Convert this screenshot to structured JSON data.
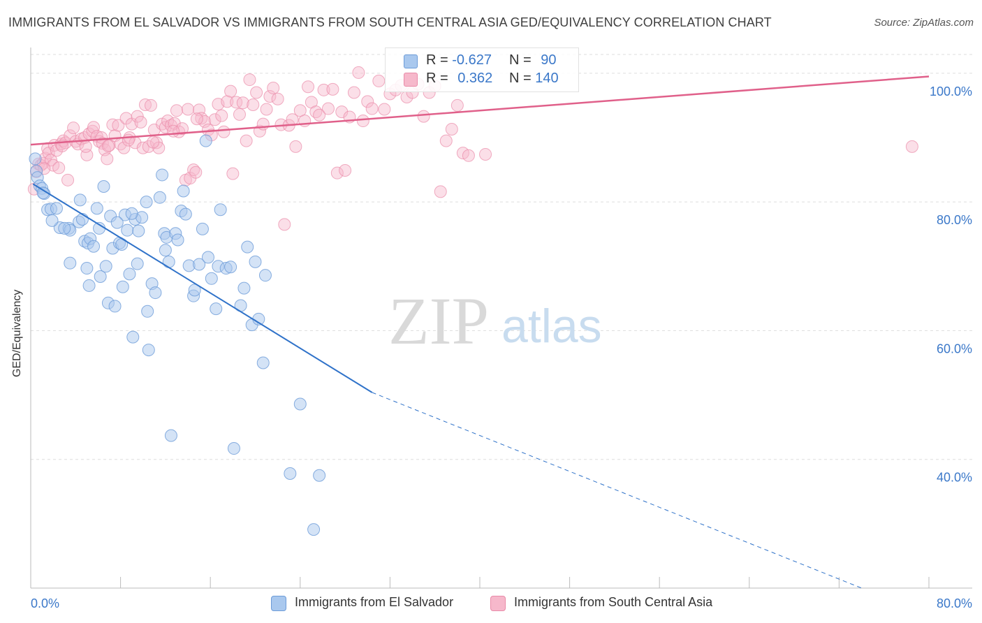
{
  "title": "IMMIGRANTS FROM EL SALVADOR VS IMMIGRANTS FROM SOUTH CENTRAL ASIA GED/EQUIVALENCY CORRELATION CHART",
  "source": "Source: ZipAtlas.com",
  "watermark": {
    "zip": "ZIP",
    "atlas": "atlas"
  },
  "colors": {
    "blue_fill": "#a9c8ee",
    "blue_stroke": "#6c9bd8",
    "blue_line": "#2f72c9",
    "pink_fill": "#f6b8cb",
    "pink_stroke": "#e98aa8",
    "pink_line": "#e0608a",
    "tick_label": "#3b78c9",
    "grid": "#dddddd"
  },
  "legend_top": {
    "rows": [
      {
        "series": "blue",
        "r_label": "R = ",
        "r_value": "-0.627",
        "n_label": "N = ",
        "n_value": "90"
      },
      {
        "series": "pink",
        "r_label": "R = ",
        "r_value": "0.362",
        "n_label": "N = ",
        "n_value": "140"
      }
    ]
  },
  "legend_bottom": {
    "items": [
      {
        "series": "blue",
        "label": "Immigrants from El Salvador"
      },
      {
        "series": "pink",
        "label": "Immigrants from South Central Asia"
      }
    ]
  },
  "chart_data": {
    "type": "scatter",
    "title": "IMMIGRANTS FROM EL SALVADOR VS IMMIGRANTS FROM SOUTH CENTRAL ASIA GED/EQUIVALENCY CORRELATION CHART",
    "xlabel": "",
    "ylabel": "GED/Equivalency",
    "xlim": [
      0,
      80
    ],
    "ylim": [
      20,
      104
    ],
    "x_tick_labels": [
      "0.0%",
      "80.0%"
    ],
    "y_ticks": [
      40,
      60,
      80,
      100
    ],
    "y_tick_labels": [
      "40.0%",
      "60.0%",
      "80.0%",
      "100.0%"
    ],
    "grid": true,
    "legend_placement": "top-center and bottom",
    "series": [
      {
        "name": "Immigrants from El Salvador",
        "color": "#a9c8ee",
        "r": -0.627,
        "n": 90,
        "trend": {
          "x0": 0.2,
          "y0": 82.8,
          "x1": 30.4,
          "y1": 50.4,
          "dashed_to_x": 74,
          "dashed_to_y": 20
        },
        "points": [
          [
            0.4,
            86.7
          ],
          [
            0.5,
            84.8
          ],
          [
            0.6,
            83.8
          ],
          [
            0.8,
            82.5
          ],
          [
            1.0,
            82.1
          ],
          [
            1.2,
            81.3
          ],
          [
            1.1,
            81.4
          ],
          [
            1.5,
            78.8
          ],
          [
            1.8,
            78.9
          ],
          [
            2.3,
            79.0
          ],
          [
            2.6,
            76.0
          ],
          [
            3.4,
            75.9
          ],
          [
            3.5,
            75.6
          ],
          [
            3.5,
            70.5
          ],
          [
            4.3,
            76.9
          ],
          [
            4.4,
            80.3
          ],
          [
            4.8,
            73.9
          ],
          [
            4.6,
            77.3
          ],
          [
            5.0,
            69.7
          ],
          [
            5.1,
            73.6
          ],
          [
            5.2,
            67.0
          ],
          [
            5.3,
            74.3
          ],
          [
            5.6,
            73.1
          ],
          [
            5.9,
            79.0
          ],
          [
            6.1,
            75.9
          ],
          [
            6.2,
            68.4
          ],
          [
            6.5,
            82.4
          ],
          [
            6.7,
            70.0
          ],
          [
            6.9,
            64.3
          ],
          [
            7.1,
            77.8
          ],
          [
            7.3,
            72.8
          ],
          [
            7.5,
            63.8
          ],
          [
            7.9,
            73.6
          ],
          [
            8.1,
            73.4
          ],
          [
            8.2,
            66.8
          ],
          [
            8.4,
            78.0
          ],
          [
            8.6,
            75.6
          ],
          [
            8.8,
            68.8
          ],
          [
            9.1,
            59.0
          ],
          [
            9.3,
            77.3
          ],
          [
            9.5,
            70.4
          ],
          [
            9.6,
            75.5
          ],
          [
            9.9,
            77.6
          ],
          [
            10.3,
            80.0
          ],
          [
            10.4,
            63.0
          ],
          [
            10.5,
            57.0
          ],
          [
            10.8,
            67.3
          ],
          [
            11.1,
            65.9
          ],
          [
            11.5,
            80.7
          ],
          [
            11.7,
            84.2
          ],
          [
            11.9,
            75.1
          ],
          [
            12.1,
            74.5
          ],
          [
            12.3,
            70.7
          ],
          [
            12.5,
            43.7
          ],
          [
            12.9,
            75.1
          ],
          [
            13.1,
            74.1
          ],
          [
            13.4,
            78.6
          ],
          [
            13.6,
            81.7
          ],
          [
            13.8,
            78.1
          ],
          [
            14.1,
            70.1
          ],
          [
            14.5,
            65.4
          ],
          [
            14.6,
            66.3
          ],
          [
            15.0,
            70.3
          ],
          [
            15.3,
            75.8
          ],
          [
            15.6,
            89.5
          ],
          [
            16.1,
            68.1
          ],
          [
            16.5,
            63.4
          ],
          [
            16.7,
            70.0
          ],
          [
            16.9,
            78.8
          ],
          [
            17.4,
            69.7
          ],
          [
            17.8,
            69.9
          ],
          [
            18.1,
            41.7
          ],
          [
            18.7,
            63.9
          ],
          [
            19.0,
            66.6
          ],
          [
            19.3,
            73.0
          ],
          [
            19.7,
            60.9
          ],
          [
            20.0,
            70.7
          ],
          [
            20.3,
            61.8
          ],
          [
            20.7,
            55.0
          ],
          [
            20.9,
            68.6
          ],
          [
            23.1,
            37.8
          ],
          [
            24.0,
            48.6
          ],
          [
            25.2,
            29.1
          ],
          [
            25.7,
            37.5
          ],
          [
            1.9,
            77.1
          ],
          [
            3.0,
            75.9
          ],
          [
            7.7,
            76.8
          ],
          [
            9.0,
            78.2
          ],
          [
            12.0,
            72.5
          ],
          [
            15.8,
            71.4
          ]
        ]
      },
      {
        "name": "Immigrants from South Central Asia",
        "color": "#f6b8cb",
        "r": 0.362,
        "n": 140,
        "trend": {
          "x0": 0,
          "y0": 88.9,
          "x1": 80,
          "y1": 99.5
        },
        "points": [
          [
            0.3,
            82.0
          ],
          [
            0.5,
            84.7
          ],
          [
            0.7,
            85.9
          ],
          [
            0.9,
            85.7
          ],
          [
            1.1,
            86.0
          ],
          [
            1.3,
            86.8
          ],
          [
            1.5,
            88.3
          ],
          [
            1.6,
            87.6
          ],
          [
            1.8,
            86.5
          ],
          [
            2.0,
            85.7
          ],
          [
            2.1,
            88.8
          ],
          [
            2.3,
            88.0
          ],
          [
            2.5,
            85.3
          ],
          [
            2.7,
            89.0
          ],
          [
            2.9,
            89.5
          ],
          [
            3.1,
            89.2
          ],
          [
            3.3,
            83.4
          ],
          [
            3.5,
            90.3
          ],
          [
            3.8,
            91.5
          ],
          [
            4.0,
            89.4
          ],
          [
            4.2,
            89.0
          ],
          [
            4.5,
            89.8
          ],
          [
            4.8,
            90.0
          ],
          [
            5.0,
            87.3
          ],
          [
            5.2,
            90.6
          ],
          [
            5.5,
            91.0
          ],
          [
            5.6,
            91.6
          ],
          [
            5.9,
            90.2
          ],
          [
            6.1,
            89.4
          ],
          [
            6.3,
            90.0
          ],
          [
            6.4,
            89.1
          ],
          [
            6.6,
            88.1
          ],
          [
            6.8,
            86.7
          ],
          [
            7.0,
            88.8
          ],
          [
            7.3,
            92.0
          ],
          [
            7.5,
            90.3
          ],
          [
            7.8,
            91.9
          ],
          [
            8.0,
            89.0
          ],
          [
            8.3,
            88.4
          ],
          [
            8.5,
            93.0
          ],
          [
            8.8,
            90.0
          ],
          [
            9.0,
            92.1
          ],
          [
            9.3,
            89.2
          ],
          [
            9.5,
            93.3
          ],
          [
            9.8,
            92.4
          ],
          [
            10.0,
            88.4
          ],
          [
            10.2,
            95.1
          ],
          [
            10.5,
            88.6
          ],
          [
            10.7,
            95.0
          ],
          [
            11.0,
            91.2
          ],
          [
            11.2,
            89.2
          ],
          [
            11.4,
            88.4
          ],
          [
            11.7,
            92.1
          ],
          [
            12.0,
            91.6
          ],
          [
            12.2,
            92.6
          ],
          [
            12.5,
            91.9
          ],
          [
            12.8,
            92.2
          ],
          [
            13.0,
            94.2
          ],
          [
            13.2,
            90.9
          ],
          [
            13.5,
            91.4
          ],
          [
            13.8,
            83.4
          ],
          [
            14.0,
            94.4
          ],
          [
            14.2,
            83.7
          ],
          [
            14.5,
            85.0
          ],
          [
            14.7,
            84.6
          ],
          [
            15.0,
            94.3
          ],
          [
            15.2,
            93.0
          ],
          [
            15.5,
            92.5
          ],
          [
            15.8,
            91.2
          ],
          [
            16.1,
            90.4
          ],
          [
            16.4,
            92.8
          ],
          [
            16.7,
            95.2
          ],
          [
            17.0,
            93.4
          ],
          [
            17.2,
            90.9
          ],
          [
            17.5,
            95.6
          ],
          [
            17.8,
            97.2
          ],
          [
            18.0,
            84.4
          ],
          [
            18.3,
            95.5
          ],
          [
            18.6,
            93.6
          ],
          [
            18.9,
            95.4
          ],
          [
            19.2,
            89.5
          ],
          [
            19.5,
            99.0
          ],
          [
            19.8,
            95.1
          ],
          [
            20.1,
            97.0
          ],
          [
            20.4,
            91.0
          ],
          [
            20.7,
            92.1
          ],
          [
            21.0,
            94.4
          ],
          [
            21.3,
            96.4
          ],
          [
            21.6,
            97.7
          ],
          [
            22.0,
            96.0
          ],
          [
            22.3,
            92.0
          ],
          [
            22.6,
            76.5
          ],
          [
            23.0,
            91.9
          ],
          [
            23.3,
            92.8
          ],
          [
            23.6,
            88.6
          ],
          [
            24.0,
            94.2
          ],
          [
            24.4,
            92.6
          ],
          [
            24.7,
            97.9
          ],
          [
            25.0,
            95.5
          ],
          [
            25.4,
            94.0
          ],
          [
            25.7,
            93.5
          ],
          [
            26.1,
            97.4
          ],
          [
            26.5,
            94.5
          ],
          [
            26.9,
            97.5
          ],
          [
            27.3,
            84.5
          ],
          [
            27.7,
            94.0
          ],
          [
            28.0,
            84.9
          ],
          [
            28.4,
            93.2
          ],
          [
            28.8,
            97.0
          ],
          [
            29.2,
            100.1
          ],
          [
            29.6,
            92.6
          ],
          [
            30.0,
            95.6
          ],
          [
            30.4,
            94.5
          ],
          [
            31.0,
            98.8
          ],
          [
            31.5,
            94.4
          ],
          [
            32.0,
            96.8
          ],
          [
            32.5,
            97.4
          ],
          [
            33.0,
            98.1
          ],
          [
            33.5,
            96.3
          ],
          [
            34.0,
            97.0
          ],
          [
            34.5,
            98.3
          ],
          [
            35.0,
            93.3
          ],
          [
            35.5,
            97.0
          ],
          [
            36.0,
            98.0
          ],
          [
            36.5,
            81.6
          ],
          [
            37.0,
            89.5
          ],
          [
            37.5,
            91.3
          ],
          [
            38.0,
            95.0
          ],
          [
            38.5,
            87.6
          ],
          [
            39.0,
            87.2
          ],
          [
            40.5,
            87.4
          ],
          [
            78.5,
            88.6
          ],
          [
            1.2,
            85.2
          ],
          [
            2.8,
            88.7
          ],
          [
            4.9,
            88.6
          ],
          [
            6.9,
            88.7
          ],
          [
            8.7,
            89.6
          ],
          [
            10.9,
            89.3
          ],
          [
            12.7,
            91.0
          ],
          [
            14.8,
            92.9
          ]
        ]
      }
    ]
  }
}
